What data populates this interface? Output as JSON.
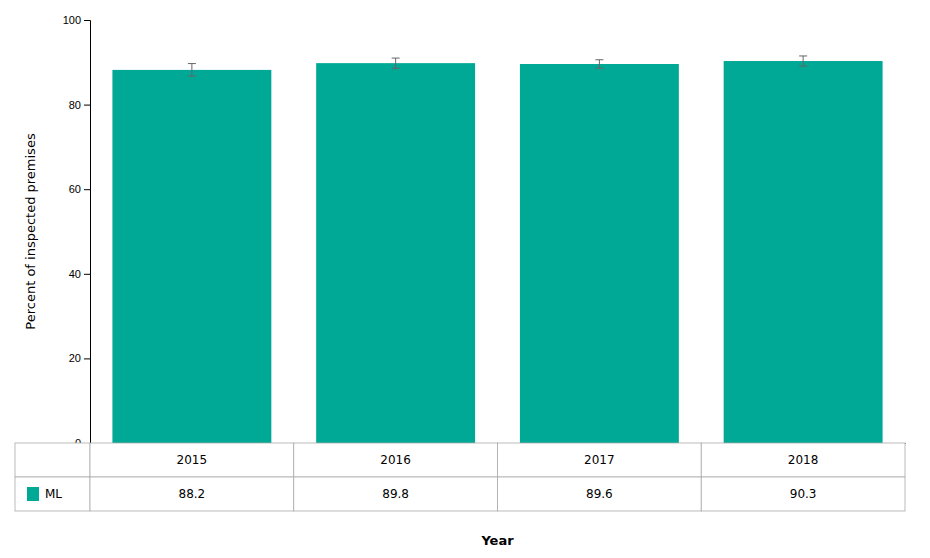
{
  "chart_data": {
    "type": "bar",
    "categories": [
      "2015",
      "2016",
      "2017",
      "2018"
    ],
    "series": [
      {
        "name": "ML",
        "color": "#00a896",
        "values": [
          88.2,
          89.8,
          89.6,
          90.3
        ],
        "errors": [
          1.5,
          1.2,
          1.0,
          1.2
        ]
      }
    ],
    "ylabel": "Percent of inspected premises",
    "xlabel": "Year",
    "ylim": [
      0,
      100
    ],
    "yticks": [
      0,
      20,
      40,
      60,
      80,
      100
    ],
    "grid": false,
    "tick_labels": "y",
    "data_labels": true
  }
}
